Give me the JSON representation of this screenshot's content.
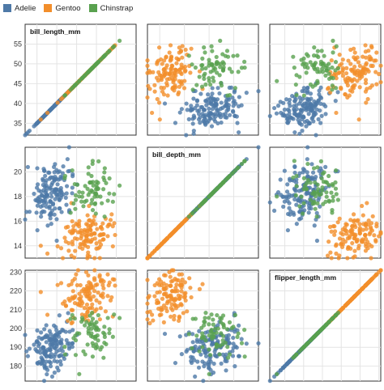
{
  "legend": {
    "items": [
      {
        "label": "Adelie",
        "color": "#4e79a7"
      },
      {
        "label": "Gentoo",
        "color": "#f28e2b"
      },
      {
        "label": "Chinstrap",
        "color": "#59a14f"
      }
    ]
  },
  "chart_data": {
    "type": "scatter",
    "subtype": "scatter-matrix",
    "variables": [
      "bill_length_mm",
      "bill_depth_mm",
      "flipper_length_mm"
    ],
    "axis_ranges": {
      "bill_length_mm": [
        32,
        60
      ],
      "bill_depth_mm": [
        13,
        22
      ],
      "flipper_length_mm": [
        172,
        231
      ]
    },
    "ticks": {
      "bill_length_mm": [
        "35",
        "40",
        "45",
        "50",
        "55"
      ],
      "bill_depth_mm": [
        "14",
        "16",
        "18",
        "20"
      ],
      "flipper_length_mm": [
        "180",
        "190",
        "200",
        "210",
        "220",
        "230"
      ]
    },
    "grid": true,
    "legend_position": "top-left",
    "series": [
      {
        "name": "Adelie",
        "mean": {
          "bill_length_mm": 38.8,
          "bill_depth_mm": 18.3,
          "flipper_length_mm": 190
        },
        "spread": {
          "bill_length_mm": 2.6,
          "bill_depth_mm": 1.2,
          "flipper_length_mm": 6.5
        },
        "count": 146
      },
      {
        "name": "Gentoo",
        "mean": {
          "bill_length_mm": 47.5,
          "bill_depth_mm": 15.0,
          "flipper_length_mm": 217
        },
        "spread": {
          "bill_length_mm": 3.0,
          "bill_depth_mm": 1.0,
          "flipper_length_mm": 6.5
        },
        "count": 119
      },
      {
        "name": "Chinstrap",
        "mean": {
          "bill_length_mm": 48.8,
          "bill_depth_mm": 18.4,
          "flipper_length_mm": 196
        },
        "spread": {
          "bill_length_mm": 3.3,
          "bill_depth_mm": 1.1,
          "flipper_length_mm": 7.1
        },
        "count": 68
      }
    ]
  }
}
